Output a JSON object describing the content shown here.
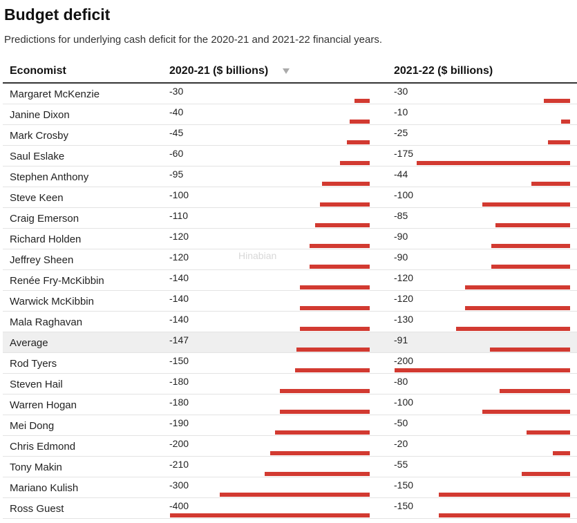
{
  "chart_data": {
    "type": "table",
    "title": "Budget deficit",
    "subtitle": "Predictions for underlying cash deficit for the 2020-21 and 2021-22 financial years.",
    "columns": [
      "Economist",
      "2020-21 ($ billions)",
      "2021-22 ($ billions)"
    ],
    "sorted_column": "2020-21 ($ billions)",
    "bar_color": "#d23a31",
    "rows": [
      {
        "name": "Margaret McKenzie",
        "y2020_21": -30,
        "y2021_22": -30
      },
      {
        "name": "Janine Dixon",
        "y2020_21": -40,
        "y2021_22": -10
      },
      {
        "name": "Mark Crosby",
        "y2020_21": -45,
        "y2021_22": -25
      },
      {
        "name": "Saul Eslake",
        "y2020_21": -60,
        "y2021_22": -175
      },
      {
        "name": "Stephen Anthony",
        "y2020_21": -95,
        "y2021_22": -44
      },
      {
        "name": "Steve Keen",
        "y2020_21": -100,
        "y2021_22": -100
      },
      {
        "name": "Craig Emerson",
        "y2020_21": -110,
        "y2021_22": -85
      },
      {
        "name": "Richard Holden",
        "y2020_21": -120,
        "y2021_22": -90
      },
      {
        "name": "Jeffrey Sheen",
        "y2020_21": -120,
        "y2021_22": -90
      },
      {
        "name": "Renée Fry-McKibbin",
        "y2020_21": -140,
        "y2021_22": -120
      },
      {
        "name": "Warwick McKibbin",
        "y2020_21": -140,
        "y2021_22": -120
      },
      {
        "name": "Mala Raghavan",
        "y2020_21": -140,
        "y2021_22": -130
      },
      {
        "name": "Average",
        "y2020_21": -147,
        "y2021_22": -91,
        "highlight": true
      },
      {
        "name": "Rod Tyers",
        "y2020_21": -150,
        "y2021_22": -200
      },
      {
        "name": "Steven Hail",
        "y2020_21": -180,
        "y2021_22": -80
      },
      {
        "name": "Warren Hogan",
        "y2020_21": -180,
        "y2021_22": -100
      },
      {
        "name": "Mei Dong",
        "y2020_21": -190,
        "y2021_22": -50
      },
      {
        "name": "Chris Edmond",
        "y2020_21": -200,
        "y2021_22": -20
      },
      {
        "name": "Tony Makin",
        "y2020_21": -210,
        "y2021_22": -55
      },
      {
        "name": "Mariano Kulish",
        "y2020_21": -300,
        "y2021_22": -150
      },
      {
        "name": "Ross Guest",
        "y2020_21": -400,
        "y2021_22": -150
      }
    ]
  },
  "watermark": "Hinabian"
}
